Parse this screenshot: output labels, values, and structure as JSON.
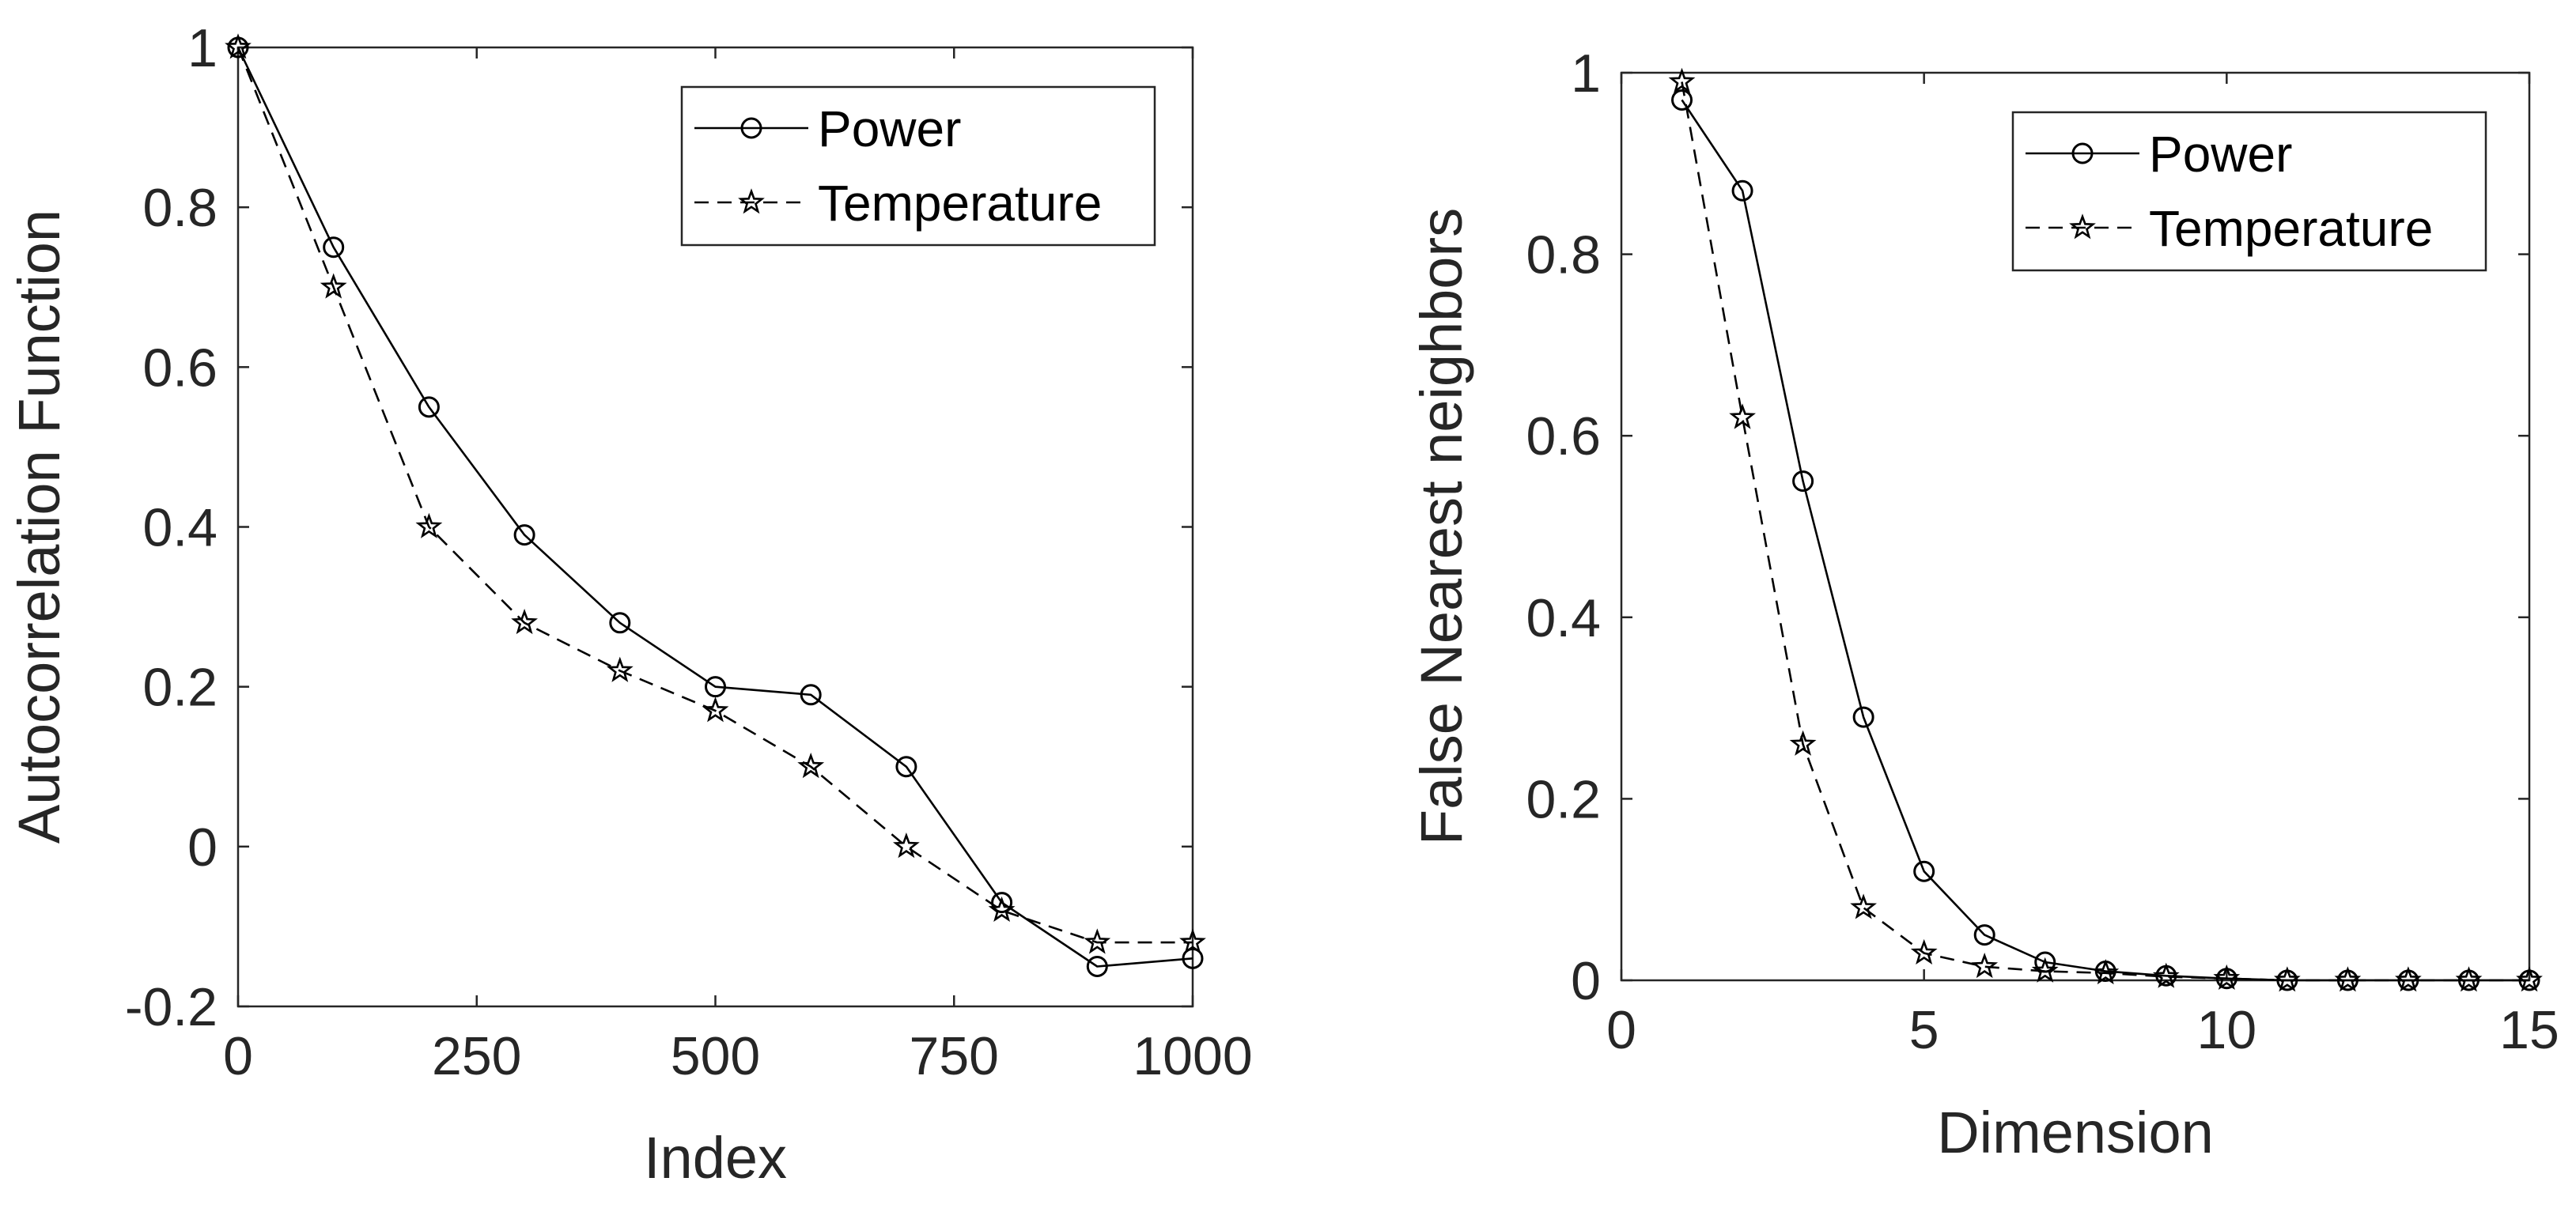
{
  "chart_data": [
    {
      "type": "line",
      "title": "",
      "xlabel": "Index",
      "ylabel": "Autocorrelation Function",
      "xlim": [
        0,
        1000
      ],
      "ylim": [
        -0.2,
        1
      ],
      "xticks": [
        0,
        250,
        500,
        750,
        1000
      ],
      "yticks": [
        -0.2,
        0,
        0.2,
        0.4,
        0.6,
        0.8,
        1
      ],
      "xtick_labels": [
        "0",
        "250",
        "500",
        "750",
        "1000"
      ],
      "ytick_labels": [
        "-0.2",
        "0",
        "0.2",
        "0.4",
        "0.6",
        "0.8",
        "1"
      ],
      "legend_position": "top-right",
      "series": [
        {
          "name": "Power",
          "style": "solid",
          "marker": "circle",
          "x": [
            0,
            100,
            200,
            300,
            400,
            500,
            600,
            700,
            800,
            900,
            1000
          ],
          "values": [
            1.0,
            0.75,
            0.55,
            0.39,
            0.28,
            0.2,
            0.19,
            0.1,
            -0.07,
            -0.15,
            -0.14
          ]
        },
        {
          "name": "Temperature",
          "style": "dashed",
          "marker": "star",
          "x": [
            0,
            100,
            200,
            300,
            400,
            500,
            600,
            700,
            800,
            900,
            1000
          ],
          "values": [
            1.0,
            0.7,
            0.4,
            0.28,
            0.22,
            0.17,
            0.1,
            0.0,
            -0.08,
            -0.12,
            -0.12
          ]
        }
      ]
    },
    {
      "type": "line",
      "title": "",
      "xlabel": "Dimension",
      "ylabel": "False Nearest neighbors",
      "xlim": [
        0,
        15
      ],
      "ylim": [
        0,
        1
      ],
      "xticks": [
        0,
        5,
        10,
        15
      ],
      "yticks": [
        0,
        0.2,
        0.4,
        0.6,
        0.8,
        1
      ],
      "xtick_labels": [
        "0",
        "5",
        "10",
        "15"
      ],
      "ytick_labels": [
        "0",
        "0.2",
        "0.4",
        "0.6",
        "0.8",
        "1"
      ],
      "legend_position": "top-right",
      "series": [
        {
          "name": "Power",
          "style": "solid",
          "marker": "circle",
          "x": [
            1,
            2,
            3,
            4,
            5,
            6,
            7,
            8,
            9,
            10,
            11,
            12,
            13,
            14,
            15
          ],
          "values": [
            0.97,
            0.87,
            0.55,
            0.29,
            0.12,
            0.05,
            0.02,
            0.01,
            0.005,
            0.002,
            0.0,
            0.0,
            0.0,
            0.0,
            0.0
          ]
        },
        {
          "name": "Temperature",
          "style": "dashed",
          "marker": "star",
          "x": [
            1,
            2,
            3,
            4,
            5,
            6,
            7,
            8,
            9,
            10,
            11,
            12,
            13,
            14,
            15
          ],
          "values": [
            0.99,
            0.62,
            0.26,
            0.08,
            0.03,
            0.015,
            0.01,
            0.008,
            0.004,
            0.002,
            0.0,
            0.0,
            0.0,
            0.0,
            0.0
          ]
        }
      ]
    }
  ]
}
